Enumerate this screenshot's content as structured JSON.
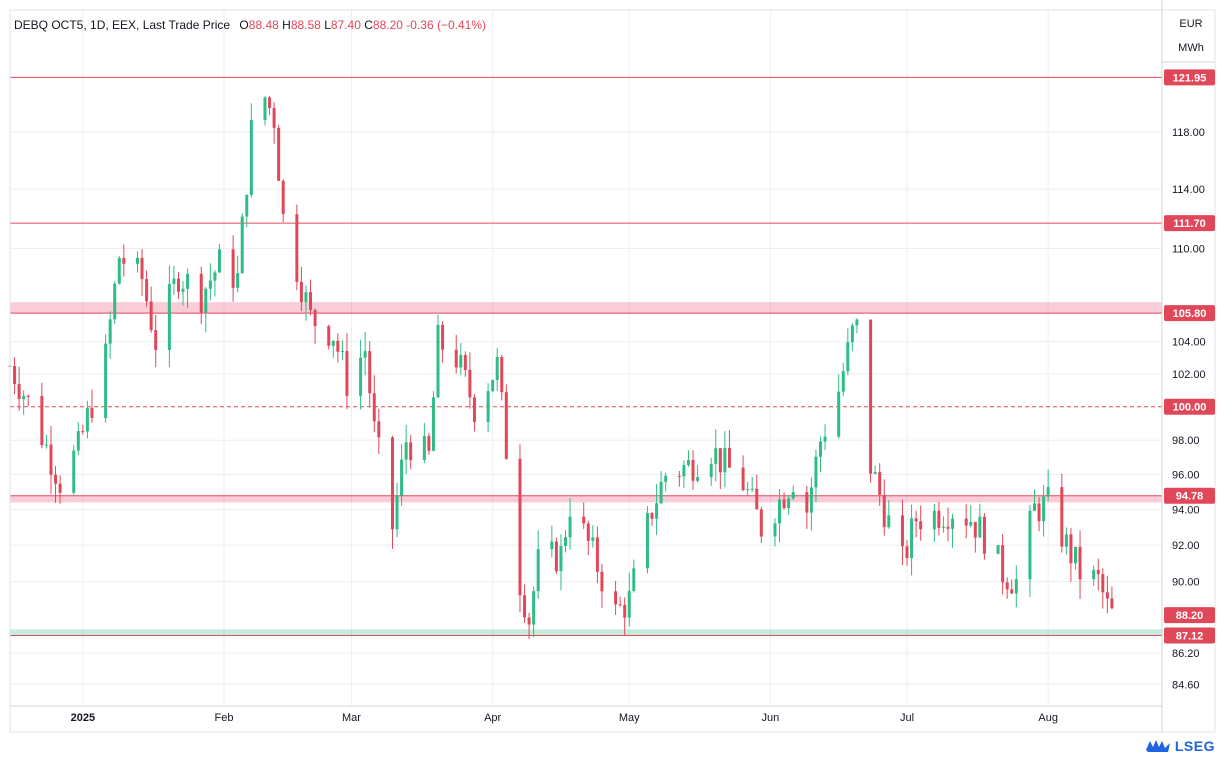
{
  "header": {
    "symbol": "DEBQ OCT5, 1D, EEX, Last Trade Price",
    "o_label": "O",
    "o_val": "88.48",
    "h_label": "H",
    "h_val": "88.58",
    "l_label": "L",
    "l_val": "87.40",
    "c_label": "C",
    "c_val": "88.20",
    "change": "-0.36 (−0.41%)"
  },
  "units": {
    "currency": "EUR",
    "energy": "MWh"
  },
  "brand": {
    "name": "LSEG",
    "icon": "lseg-logo-icon"
  },
  "colors": {
    "up": "#26a69a",
    "up_body": "#2ebd85",
    "down": "#e0485a",
    "level": "#e0485a",
    "support": "#2ebd85",
    "grid": "#eeeef1"
  },
  "chart_data": {
    "type": "candlestick",
    "title": "DEBQ OCT5, 1D, EEX, Last Trade Price",
    "ylim": [
      83.5,
      127.0
    ],
    "x_range": [
      "2024-12-16",
      "2025-08-26"
    ],
    "y_scale": "log",
    "y_ticks": [
      84.6,
      86.2,
      90.0,
      92.0,
      94.0,
      96.0,
      98.0,
      102.0,
      104.0,
      110.0,
      114.0,
      118.0
    ],
    "x_ticks": [
      {
        "label": "2025",
        "date": "2025-01-01"
      },
      {
        "label": "Feb",
        "date": "2025-02-01"
      },
      {
        "label": "Mar",
        "date": "2025-03-01"
      },
      {
        "label": "Apr",
        "date": "2025-04-01"
      },
      {
        "label": "May",
        "date": "2025-05-01"
      },
      {
        "label": "Jun",
        "date": "2025-06-01"
      },
      {
        "label": "Jul",
        "date": "2025-07-01"
      },
      {
        "label": "Aug",
        "date": "2025-08-01"
      }
    ],
    "levels": [
      {
        "label": "121.95",
        "value": 121.95,
        "style": "solid"
      },
      {
        "label": "111.70",
        "value": 111.7,
        "style": "solid"
      },
      {
        "label": "105.80",
        "value": 105.8,
        "style": "solid",
        "zone_to": 106.5
      },
      {
        "label": "100.00",
        "value": 100.0,
        "style": "dashed"
      },
      {
        "label": "94.78",
        "value": 94.78,
        "style": "solid",
        "zone_to": 94.4
      },
      {
        "label": "87.12",
        "value": 87.12,
        "style": "solid",
        "zone_to": 87.45,
        "zone_color": "support"
      }
    ],
    "last_price": {
      "label": "88.20",
      "value": 88.2
    },
    "anchors": [
      [
        "2024-12-16",
        102.5
      ],
      [
        "2024-12-20",
        100.3
      ],
      [
        "2024-12-27",
        95.6
      ],
      [
        "2024-12-31",
        97.5
      ],
      [
        "2025-01-06",
        103.0
      ],
      [
        "2025-01-09",
        109.5
      ],
      [
        "2025-01-14",
        108.0
      ],
      [
        "2025-01-17",
        104.0
      ],
      [
        "2025-01-22",
        108.3
      ],
      [
        "2025-01-27",
        107.0
      ],
      [
        "2025-01-31",
        109.0
      ],
      [
        "2025-02-04",
        108.0
      ],
      [
        "2025-02-07",
        118.0
      ],
      [
        "2025-02-10",
        120.5
      ],
      [
        "2025-02-12",
        119.0
      ],
      [
        "2025-02-14",
        112.0
      ],
      [
        "2025-02-20",
        105.5
      ],
      [
        "2025-02-25",
        104.5
      ],
      [
        "2025-02-28",
        101.5
      ],
      [
        "2025-03-04",
        103.5
      ],
      [
        "2025-03-06",
        98.5
      ],
      [
        "2025-03-10",
        93.0
      ],
      [
        "2025-03-13",
        98.0
      ],
      [
        "2025-03-18",
        97.0
      ],
      [
        "2025-03-20",
        104.0
      ],
      [
        "2025-03-24",
        103.0
      ],
      [
        "2025-03-28",
        100.0
      ],
      [
        "2025-04-02",
        102.5
      ],
      [
        "2025-04-07",
        90.0
      ],
      [
        "2025-04-09",
        88.0
      ],
      [
        "2025-04-11",
        91.0
      ],
      [
        "2025-04-16",
        91.5
      ],
      [
        "2025-04-18",
        94.3
      ],
      [
        "2025-04-23",
        91.5
      ],
      [
        "2025-04-28",
        88.3
      ],
      [
        "2025-05-01",
        89.0
      ],
      [
        "2025-05-06",
        94.0
      ],
      [
        "2025-05-09",
        96.0
      ],
      [
        "2025-05-14",
        96.5
      ],
      [
        "2025-05-19",
        97.5
      ],
      [
        "2025-05-22",
        96.5
      ],
      [
        "2025-05-26",
        95.5
      ],
      [
        "2025-05-30",
        93.0
      ],
      [
        "2025-06-03",
        94.5
      ],
      [
        "2025-06-06",
        95.8
      ],
      [
        "2025-06-09",
        94.0
      ],
      [
        "2025-06-12",
        98.0
      ],
      [
        "2025-06-16",
        101.0
      ],
      [
        "2025-06-19",
        104.5
      ],
      [
        "2025-06-20",
        104.8
      ],
      [
        "2025-06-23",
        96.5
      ],
      [
        "2025-06-26",
        94.0
      ],
      [
        "2025-06-30",
        91.0
      ],
      [
        "2025-07-03",
        93.5
      ],
      [
        "2025-07-08",
        93.8
      ],
      [
        "2025-07-11",
        94.0
      ],
      [
        "2025-07-15",
        93.5
      ],
      [
        "2025-07-18",
        92.5
      ],
      [
        "2025-07-22",
        90.5
      ],
      [
        "2025-07-25",
        90.0
      ],
      [
        "2025-07-29",
        94.0
      ],
      [
        "2025-08-01",
        94.3
      ],
      [
        "2025-08-05",
        92.0
      ],
      [
        "2025-08-08",
        90.5
      ],
      [
        "2025-08-12",
        90.0
      ],
      [
        "2025-08-14",
        88.6
      ],
      [
        "2025-08-15",
        88.2
      ]
    ]
  }
}
